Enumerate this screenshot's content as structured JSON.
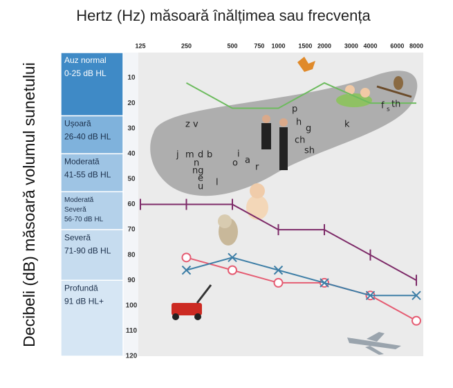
{
  "chart_data": {
    "type": "line",
    "title": "Hertz (Hz) măsoară înălțimea sau frecvența",
    "y_label": "Decibeli (dB) măsoară volumul sunetului",
    "x": [
      125,
      250,
      500,
      1000,
      2000,
      4000,
      8000
    ],
    "xlim": [
      125,
      8000
    ],
    "xticks": [
      125,
      250,
      500,
      750,
      1000,
      1500,
      2000,
      3000,
      4000,
      6000,
      8000
    ],
    "x_log": true,
    "ylim": [
      0,
      120
    ],
    "yticks": [
      10,
      20,
      30,
      40,
      50,
      60,
      70,
      80,
      90,
      100,
      110,
      120
    ],
    "y_inverted": true,
    "grid": false,
    "series": [
      {
        "color": "#6dbb5e",
        "marker": "none",
        "values": [
          null,
          12,
          22,
          22,
          12,
          20,
          20
        ]
      },
      {
        "color": "#7d2a68",
        "marker": "tick",
        "values": [
          60,
          60,
          60,
          70,
          70,
          80,
          90
        ]
      },
      {
        "color": "#e55c72",
        "marker": "circle",
        "values": [
          null,
          81,
          86,
          91,
          91,
          96,
          106
        ]
      },
      {
        "color": "#3d7ea6",
        "marker": "x",
        "values": [
          null,
          86,
          81,
          86,
          91,
          96,
          96
        ]
      }
    ],
    "bands": [
      {
        "lines": [
          "Auz normal",
          "0-25 dB HL"
        ],
        "range": [
          0,
          25
        ]
      },
      {
        "lines": [
          "Ușoară",
          "26-40 dB HL"
        ],
        "range": [
          25,
          40
        ]
      },
      {
        "lines": [
          "Moderată",
          "41-55 dB HL"
        ],
        "range": [
          40,
          55
        ]
      },
      {
        "lines": [
          "Moderată",
          "Severă",
          "56-70 dB HL"
        ],
        "range": [
          55,
          70
        ]
      },
      {
        "lines": [
          "Severă",
          "71-90 dB HL"
        ],
        "range": [
          70,
          90
        ]
      },
      {
        "lines": [
          "Profundă",
          "91 dB HL+"
        ],
        "range": [
          90,
          120
        ]
      }
    ],
    "speech_sounds": [
      "z v",
      "p",
      "h",
      "g",
      "k",
      "f",
      "s",
      "th",
      "ch",
      "sh",
      "j",
      "m",
      "d",
      "b",
      "n",
      "ng",
      "e",
      "u",
      "l",
      "o",
      "i",
      "a",
      "r"
    ]
  }
}
